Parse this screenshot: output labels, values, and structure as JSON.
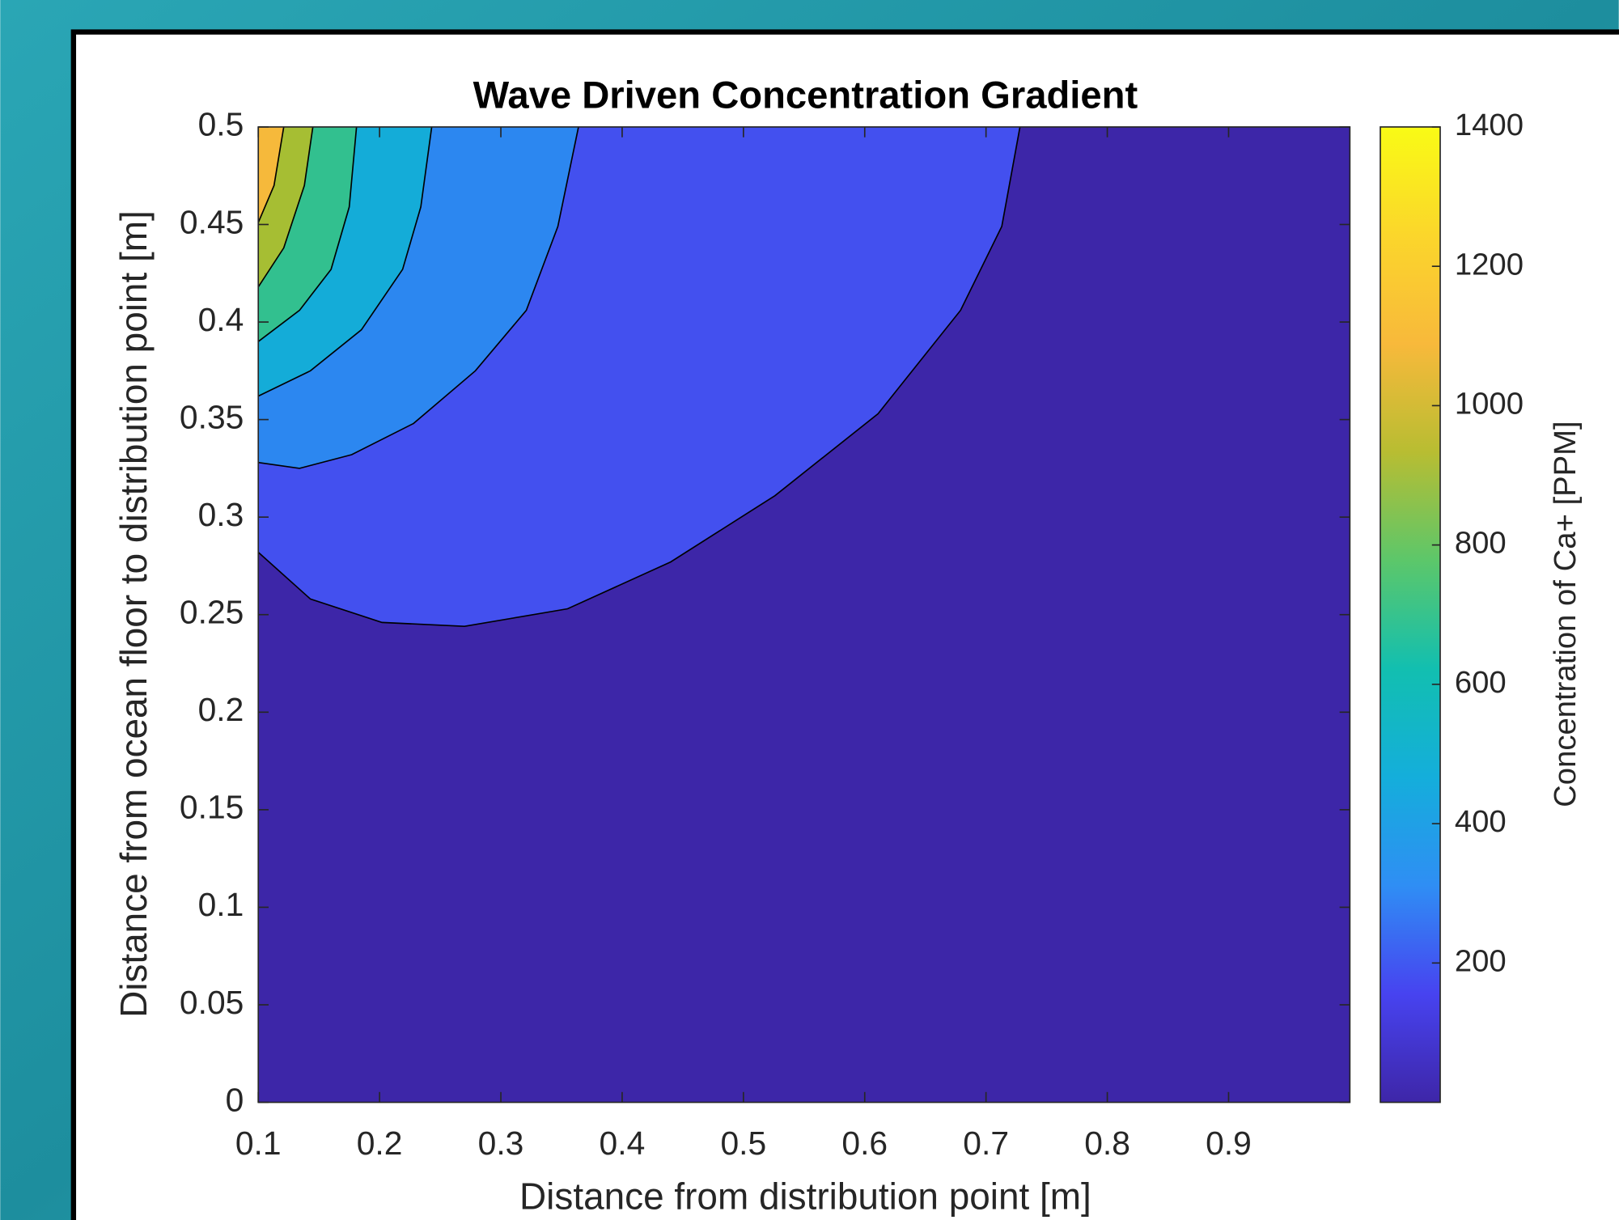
{
  "chart_data": {
    "type": "contour",
    "title": "Wave Driven Concentration Gradient",
    "x_label": "Distance from distribution point [m]",
    "y_label": "Distance from ocean floor to distribution point [m]",
    "colorbar_label": "Concentration of Ca+ [PPM]",
    "xlim": [
      0.1,
      1.0
    ],
    "ylim": [
      0,
      0.5
    ],
    "xticks": [
      0.1,
      0.2,
      0.3,
      0.4,
      0.5,
      0.6,
      0.7,
      0.8,
      0.9
    ],
    "yticks": [
      0,
      0.05,
      0.1,
      0.15,
      0.2,
      0.25,
      0.3,
      0.35,
      0.4,
      0.45,
      0.5
    ],
    "clim": [
      0,
      1400
    ],
    "cticks": [
      200,
      400,
      600,
      800,
      1000,
      1200,
      1400
    ],
    "colormap": [
      "#3e26a8",
      "#4743f0",
      "#2f8ef4",
      "#14aedb",
      "#12bfb0",
      "#5cc76a",
      "#b8bd32",
      "#f8b93b",
      "#fbd62b",
      "#f9fb15"
    ],
    "base_color": "#3d26a8",
    "contours": [
      {
        "level": 200,
        "color": "#4350ef",
        "x": [
          0.1,
          0.143,
          0.202,
          0.27,
          0.355,
          0.44,
          0.526,
          0.611,
          0.679,
          0.713,
          0.728
        ],
        "y": [
          0.282,
          0.258,
          0.246,
          0.244,
          0.253,
          0.277,
          0.311,
          0.353,
          0.406,
          0.449,
          0.5
        ]
      },
      {
        "level": 400,
        "color": "#2c87f0",
        "x": [
          0.1,
          0.134,
          0.177,
          0.228,
          0.279,
          0.321,
          0.347,
          0.364
        ],
        "y": [
          0.328,
          0.325,
          0.332,
          0.348,
          0.375,
          0.406,
          0.449,
          0.5
        ]
      },
      {
        "level": 600,
        "color": "#14acd8",
        "x": [
          0.1,
          0.143,
          0.185,
          0.219,
          0.234,
          0.243
        ],
        "y": [
          0.362,
          0.375,
          0.396,
          0.427,
          0.459,
          0.5
        ]
      },
      {
        "level": 800,
        "color": "#32c08f",
        "x": [
          0.1,
          0.134,
          0.16,
          0.175,
          0.181
        ],
        "y": [
          0.39,
          0.406,
          0.427,
          0.459,
          0.5
        ]
      },
      {
        "level": 1000,
        "color": "#a6be33",
        "x": [
          0.1,
          0.121,
          0.138,
          0.145
        ],
        "y": [
          0.418,
          0.438,
          0.47,
          0.5
        ]
      },
      {
        "level": 1200,
        "color": "#f6b93b",
        "x": [
          0.1,
          0.113,
          0.121
        ],
        "y": [
          0.451,
          0.47,
          0.5
        ]
      }
    ]
  }
}
